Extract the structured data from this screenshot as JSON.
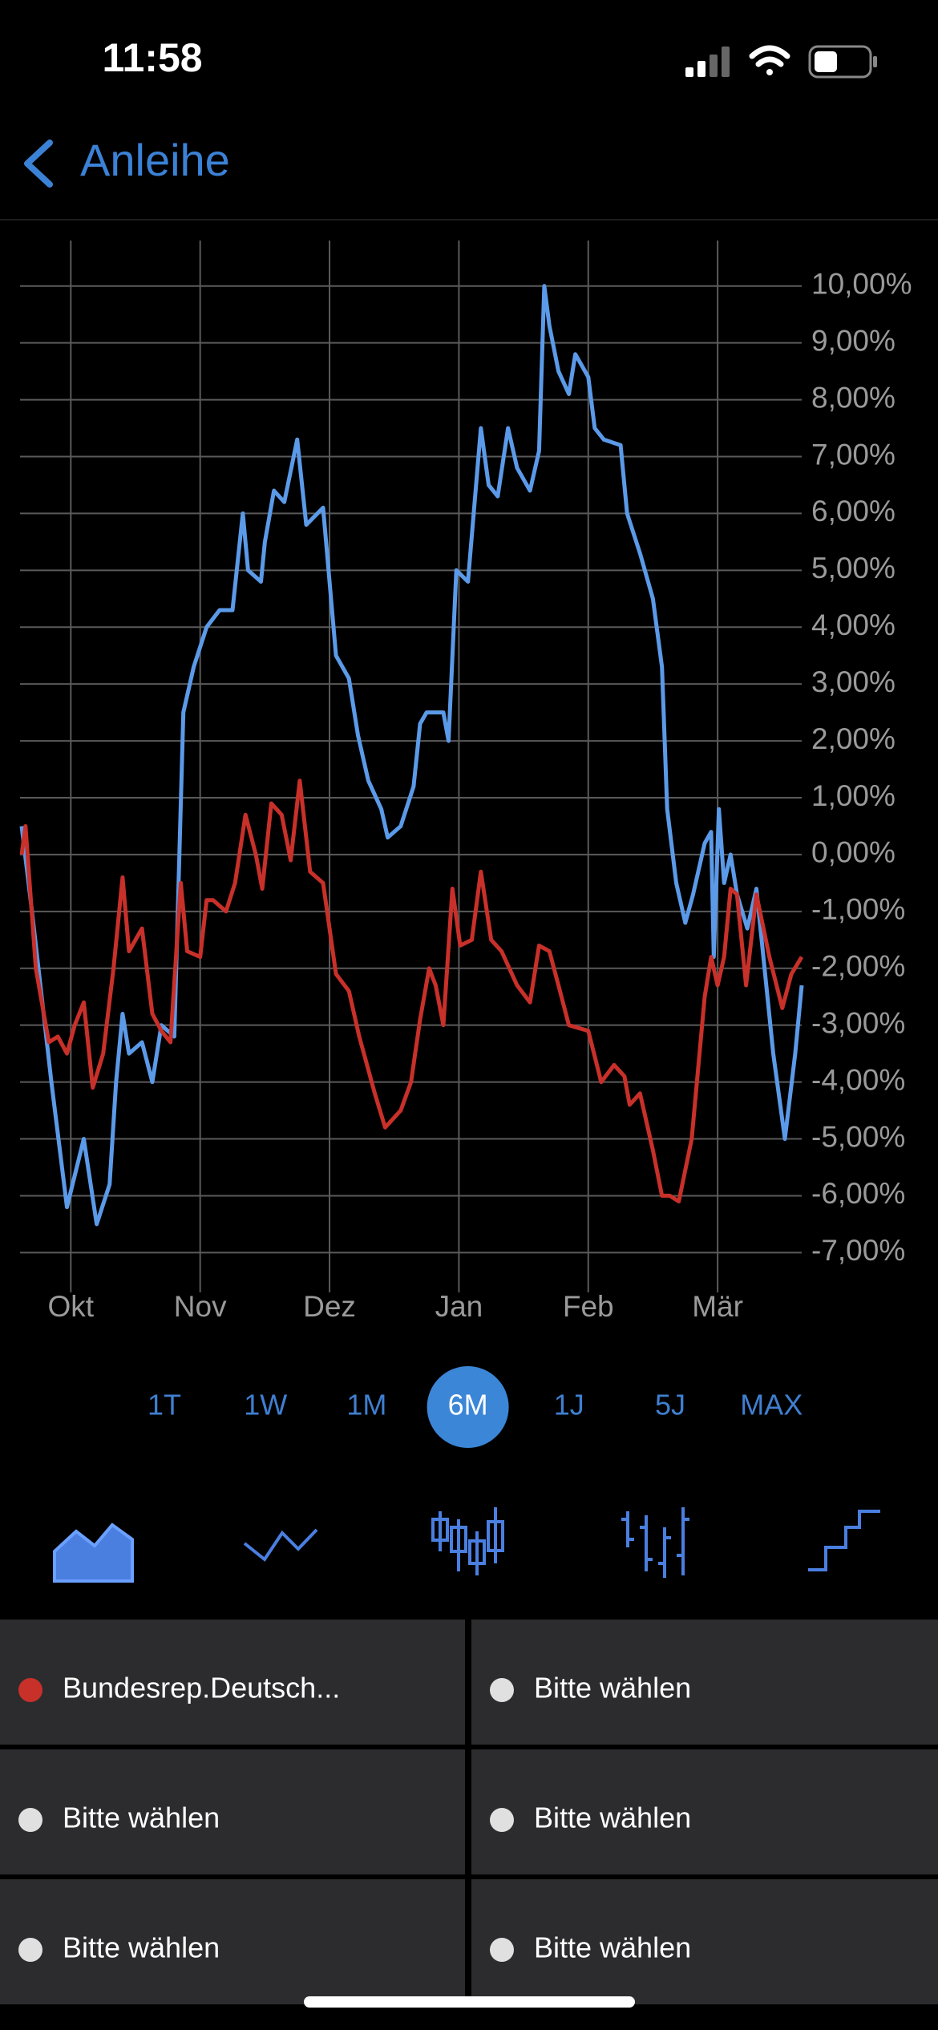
{
  "header": {
    "time": "11:58",
    "back": "Anleihe"
  },
  "chart_data": {
    "type": "line",
    "xlim": [
      -0.38,
      5.65
    ],
    "xticks": [
      {
        "value": 0,
        "label": "Okt"
      },
      {
        "value": 1,
        "label": "Nov"
      },
      {
        "value": 2,
        "label": "Dez"
      },
      {
        "value": 3,
        "label": "Jan"
      },
      {
        "value": 4,
        "label": "Feb"
      },
      {
        "value": 5,
        "label": "Mär"
      }
    ],
    "ylim": [
      -7.7,
      10.8
    ],
    "yticks": [
      {
        "value": 10,
        "label": "10,00%"
      },
      {
        "value": 9,
        "label": "9,00%"
      },
      {
        "value": 8,
        "label": "8,00%"
      },
      {
        "value": 7,
        "label": "7,00%"
      },
      {
        "value": 6,
        "label": "6,00%"
      },
      {
        "value": 5,
        "label": "5,00%"
      },
      {
        "value": 4,
        "label": "4,00%"
      },
      {
        "value": 3,
        "label": "3,00%"
      },
      {
        "value": 2,
        "label": "2,00%"
      },
      {
        "value": 1,
        "label": "1,00%"
      },
      {
        "value": 0,
        "label": "0,00%"
      },
      {
        "value": -1,
        "label": "-1,00%"
      },
      {
        "value": -2,
        "label": "-2,00%"
      },
      {
        "value": -3,
        "label": "-3,00%"
      },
      {
        "value": -4,
        "label": "-4,00%"
      },
      {
        "value": -5,
        "label": "-5,00%"
      },
      {
        "value": -6,
        "label": "-6,00%"
      },
      {
        "value": -7,
        "label": "-7,00%"
      }
    ],
    "grid": true,
    "series": [
      {
        "color": "#5b9ae8",
        "x": [
          -0.38,
          -0.3,
          -0.15,
          -0.03,
          0.1,
          0.2,
          0.3,
          0.35,
          0.4,
          0.45,
          0.55,
          0.63,
          0.7,
          0.8,
          0.87,
          0.95,
          1.05,
          1.15,
          1.25,
          1.33,
          1.37,
          1.47,
          1.5,
          1.57,
          1.65,
          1.75,
          1.82,
          1.95,
          2.05,
          2.15,
          2.22,
          2.3,
          2.4,
          2.45,
          2.55,
          2.65,
          2.7,
          2.75,
          2.88,
          2.92,
          2.98,
          3.07,
          3.17,
          3.23,
          3.3,
          3.38,
          3.45,
          3.55,
          3.62,
          3.66,
          3.7,
          3.77,
          3.85,
          3.9,
          4.0,
          4.05,
          4.12,
          4.25,
          4.3,
          4.4,
          4.5,
          4.57,
          4.61,
          4.68,
          4.75,
          4.81,
          4.9,
          4.95,
          4.97,
          5.01,
          5.05,
          5.1,
          5.15,
          5.23,
          5.3,
          5.43,
          5.52,
          5.6,
          5.65
        ],
        "values": [
          0.5,
          -1,
          -4,
          -6.2,
          -5,
          -6.5,
          -5.8,
          -4,
          -2.8,
          -3.5,
          -3.3,
          -4,
          -3,
          -3.2,
          2.5,
          3.3,
          4,
          4.3,
          4.3,
          6,
          5,
          4.8,
          5.5,
          6.4,
          6.2,
          7.3,
          5.8,
          6.1,
          3.5,
          3.1,
          2.1,
          1.3,
          0.8,
          0.3,
          0.5,
          1.2,
          2.3,
          2.5,
          2.5,
          2,
          5,
          4.8,
          7.5,
          6.5,
          6.3,
          7.5,
          6.8,
          6.4,
          7.1,
          10,
          9.3,
          8.5,
          8.1,
          8.8,
          8.4,
          7.5,
          7.3,
          7.2,
          6,
          5.3,
          4.5,
          3.3,
          0.8,
          -0.5,
          -1.2,
          -0.7,
          0.2,
          0.4,
          -1.8,
          0.8,
          -0.5,
          0,
          -0.7,
          -1.3,
          -0.6,
          -3.5,
          -5,
          -3.5,
          -2.3
        ]
      },
      {
        "name": "Bundesrep.Deutsch...",
        "color": "#c8302a",
        "x": [
          -0.38,
          -0.35,
          -0.27,
          -0.17,
          -0.1,
          -0.03,
          0.03,
          0.1,
          0.17,
          0.25,
          0.33,
          0.4,
          0.45,
          0.55,
          0.63,
          0.7,
          0.77,
          0.85,
          0.9,
          1.0,
          1.05,
          1.1,
          1.2,
          1.27,
          1.35,
          1.43,
          1.48,
          1.55,
          1.63,
          1.7,
          1.77,
          1.85,
          1.95,
          2.05,
          2.15,
          2.23,
          2.35,
          2.43,
          2.55,
          2.63,
          2.7,
          2.77,
          2.82,
          2.88,
          2.95,
          3.01,
          3.1,
          3.17,
          3.25,
          3.33,
          3.45,
          3.55,
          3.62,
          3.7,
          3.77,
          3.85,
          4.0,
          4.1,
          4.2,
          4.28,
          4.32,
          4.4,
          4.5,
          4.57,
          4.63,
          4.7,
          4.8,
          4.9,
          4.95,
          5.0,
          5.05,
          5.1,
          5.15,
          5.22,
          5.3,
          5.4,
          5.5,
          5.57,
          5.65
        ],
        "values": [
          0,
          0.5,
          -2,
          -3.3,
          -3.2,
          -3.5,
          -3,
          -2.6,
          -4.1,
          -3.5,
          -2,
          -0.4,
          -1.7,
          -1.3,
          -2.8,
          -3.1,
          -3.3,
          -0.5,
          -1.7,
          -1.8,
          -0.8,
          -0.8,
          -1,
          -0.5,
          0.7,
          0,
          -0.6,
          0.9,
          0.7,
          -0.1,
          1.3,
          -0.3,
          -0.5,
          -2.1,
          -2.4,
          -3.2,
          -4.2,
          -4.8,
          -4.5,
          -4,
          -2.9,
          -2,
          -2.3,
          -3,
          -0.6,
          -1.6,
          -1.5,
          -0.3,
          -1.5,
          -1.7,
          -2.3,
          -2.6,
          -1.6,
          -1.7,
          -2.3,
          -3,
          -3.1,
          -4,
          -3.7,
          -3.9,
          -4.4,
          -4.2,
          -5.2,
          -6,
          -6,
          -6.1,
          -5,
          -2.5,
          -1.8,
          -2.3,
          -1.8,
          -0.6,
          -0.7,
          -2.3,
          -0.7,
          -1.8,
          -2.7,
          -2.1,
          -1.8
        ]
      }
    ]
  },
  "ranges": [
    "1T",
    "1W",
    "1M",
    "6M",
    "1J",
    "5J",
    "MAX"
  ],
  "selected_range": "6M",
  "selectors": [
    {
      "label": "Bundesrep.Deutsch...",
      "color": "#c8302a"
    },
    {
      "label": "Bitte wählen",
      "color": "#e0e0e0"
    },
    {
      "label": "Bitte wählen",
      "color": "#e0e0e0"
    },
    {
      "label": "Bitte wählen",
      "color": "#e0e0e0"
    },
    {
      "label": "Bitte wählen",
      "color": "#e0e0e0"
    },
    {
      "label": "Bitte wählen",
      "color": "#e0e0e0"
    }
  ]
}
